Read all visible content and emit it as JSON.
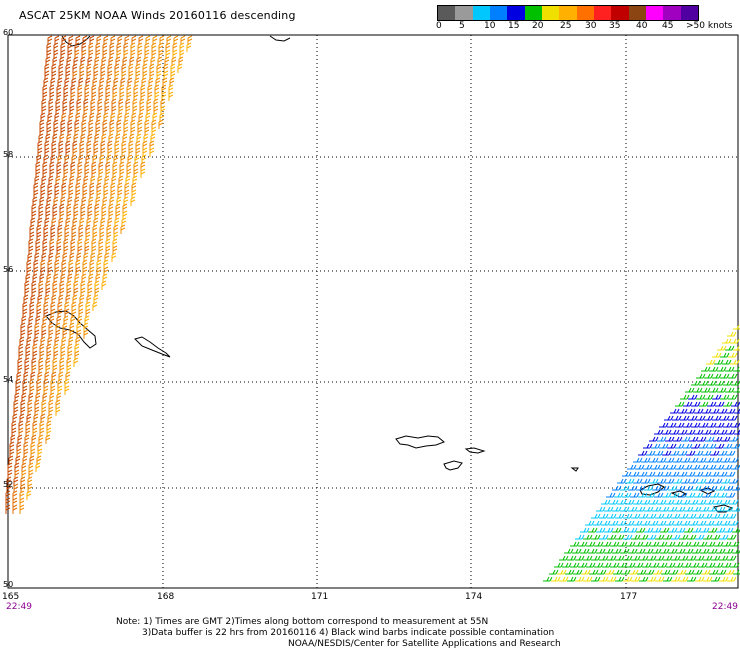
{
  "title": "ASCAT 25KM NOAA Winds 20160116 descending",
  "legend": {
    "labels": [
      "0",
      "5",
      "10",
      "15",
      "20",
      "25",
      "30",
      "35",
      "40",
      "45",
      ">50 knots"
    ],
    "colors": [
      "#5a5a5a",
      "#9a9a9a",
      "#00c8ff",
      "#0080ff",
      "#0000e0",
      "#00c000",
      "#f0e000",
      "#ffb000",
      "#ff7000",
      "#ff2020",
      "#c00000",
      "#8b4513",
      "#ff00ff",
      "#a000c0",
      "#5000a0"
    ]
  },
  "lat_labels": [
    "60",
    "58",
    "56",
    "54",
    "52",
    "50"
  ],
  "lon_labels": [
    "165",
    "168",
    "171",
    "174",
    "177"
  ],
  "times": {
    "left": "22:49",
    "right": "22:49"
  },
  "notes": [
    "Note: 1) Times are GMT 2)Times along bottom correspond to measurement at 55N",
    "3)Data buffer is 22 hrs from 20160116 4) Black wind barbs indicate possible contamination",
    "NOAA/NESDIS/Center for Satellite Applications and Research"
  ]
}
